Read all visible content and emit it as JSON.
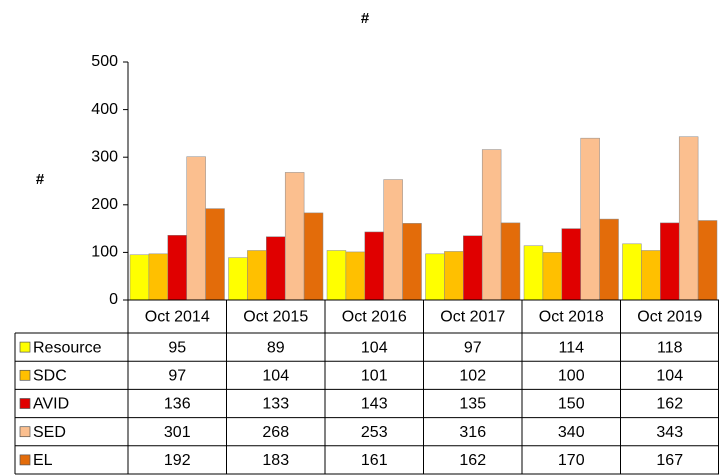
{
  "chart_data": {
    "type": "bar",
    "title": "#",
    "y_label": "#",
    "categories": [
      "Oct 2014",
      "Oct 2015",
      "Oct 2016",
      "Oct 2017",
      "Oct 2018",
      "Oct 2019"
    ],
    "series": [
      {
        "name": "Resource",
        "color": "#ffff00",
        "values": [
          95,
          89,
          104,
          97,
          114,
          118
        ]
      },
      {
        "name": "SDC",
        "color": "#ffc000",
        "values": [
          97,
          104,
          101,
          102,
          100,
          104
        ]
      },
      {
        "name": "AVID",
        "color": "#e00000",
        "values": [
          136,
          133,
          143,
          135,
          150,
          162
        ]
      },
      {
        "name": "SED",
        "color": "#fbbf8f",
        "values": [
          301,
          268,
          253,
          316,
          340,
          343
        ]
      },
      {
        "name": "EL",
        "color": "#e36c0a",
        "values": [
          192,
          183,
          161,
          162,
          170,
          167
        ]
      }
    ],
    "ylim": [
      0,
      500
    ],
    "yticks": [
      0,
      100,
      200,
      300,
      400,
      500
    ],
    "grid": false,
    "data_table": true
  }
}
